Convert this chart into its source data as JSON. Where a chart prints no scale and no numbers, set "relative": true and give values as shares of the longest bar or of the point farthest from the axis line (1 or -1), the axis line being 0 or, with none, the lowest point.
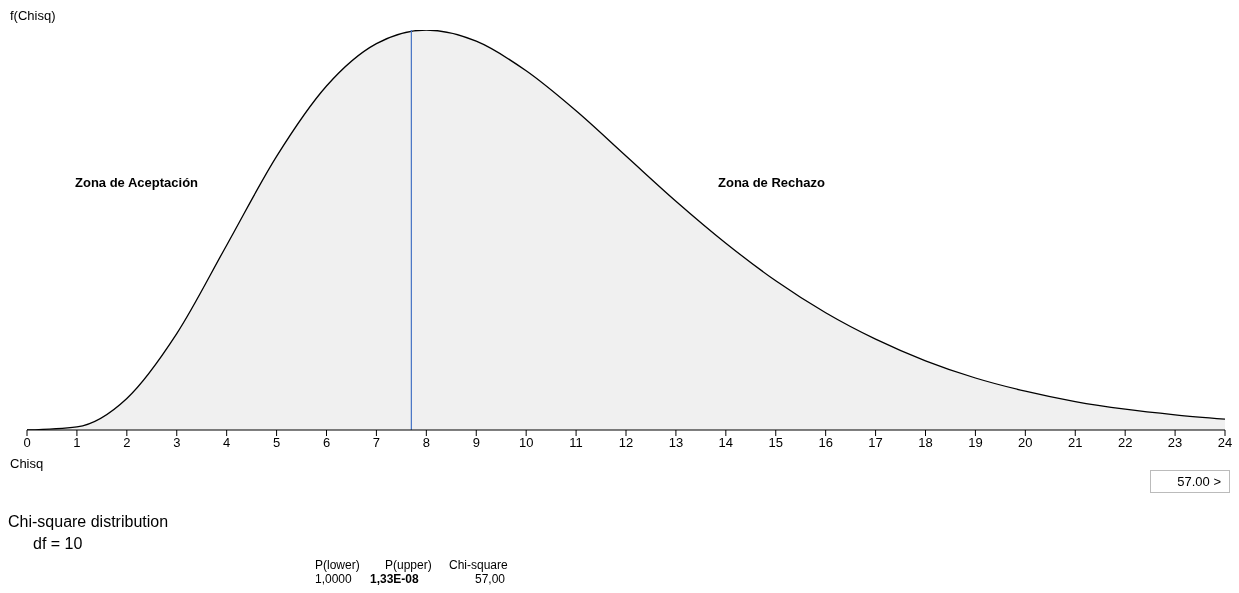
{
  "chart_data": {
    "type": "area",
    "relative": true,
    "ylabel": "f(Chisq)",
    "xlabel": "Chisq",
    "x": [
      0,
      1,
      2,
      3,
      4,
      5,
      6,
      7,
      8,
      9,
      10,
      11,
      12,
      13,
      14,
      15,
      16,
      17,
      18,
      19,
      20,
      21,
      22,
      23,
      24
    ],
    "series": [
      {
        "color": "#000000",
        "values": [
          0,
          0.008,
          0.079,
          0.241,
          0.462,
          0.684,
          0.86,
          0.966,
          1,
          0.972,
          0.898,
          0.798,
          0.685,
          0.572,
          0.467,
          0.373,
          0.293,
          0.227,
          0.173,
          0.13,
          0.097,
          0.071,
          0.052,
          0.038,
          0.027
        ]
      }
    ],
    "xlim": [
      0,
      24
    ],
    "xticks": [
      0,
      1,
      2,
      3,
      4,
      5,
      6,
      7,
      8,
      9,
      10,
      11,
      12,
      13,
      14,
      15,
      16,
      17,
      18,
      19,
      20,
      21,
      22,
      23,
      24
    ],
    "ref_lines": [
      {
        "axis": "x",
        "value": 7.7,
        "color": "#4472c4"
      }
    ],
    "annotations": [
      "Zona de Aceptación",
      "Zona de Rechazo",
      "Chi-square distribution",
      "df =  10",
      "57.00 >",
      "P(lower)",
      "P(upper)",
      "Chi-square",
      "1,0000",
      "1,33E-08",
      "57,00"
    ],
    "grid": false,
    "legend": false
  }
}
